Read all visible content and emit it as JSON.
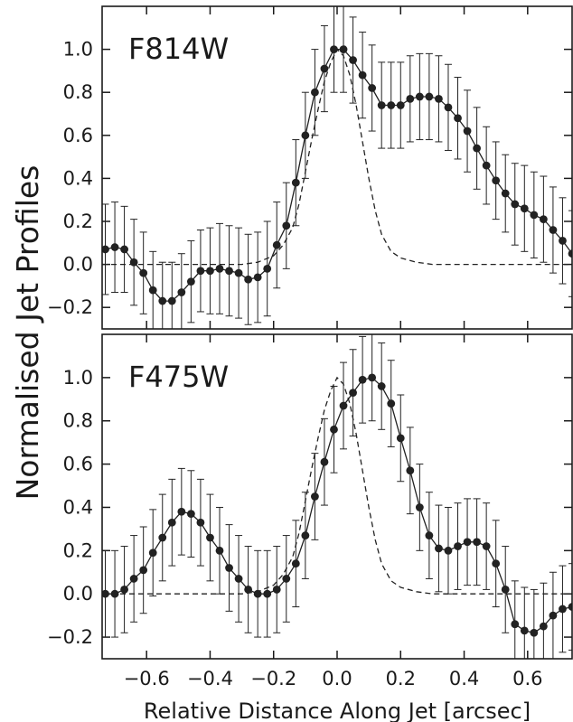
{
  "chart_data": {
    "type": "line",
    "ylabel": "Normalised Jet Profiles",
    "xlabel": "Relative Distance Along Jet [arcsec]",
    "xlim": [
      -0.74,
      0.74
    ],
    "ylim": [
      -0.3,
      1.2
    ],
    "xticks": [
      -0.6,
      -0.4,
      -0.2,
      0.0,
      0.2,
      0.4,
      0.6
    ],
    "xtick_labels": [
      "−0.6",
      "−0.4",
      "−0.2",
      "0.0",
      "0.2",
      "0.4",
      "0.6"
    ],
    "yticks": [
      -0.2,
      0.0,
      0.2,
      0.4,
      0.6,
      0.8,
      1.0
    ],
    "ytick_labels": [
      "−0.2",
      "0.0",
      "0.2",
      "0.4",
      "0.6",
      "0.8",
      "1.0"
    ],
    "grid": false,
    "panels": [
      {
        "label": "F814W",
        "x": [
          -0.73,
          -0.7,
          -0.67,
          -0.64,
          -0.61,
          -0.58,
          -0.55,
          -0.52,
          -0.49,
          -0.46,
          -0.43,
          -0.4,
          -0.37,
          -0.34,
          -0.31,
          -0.28,
          -0.25,
          -0.22,
          -0.19,
          -0.16,
          -0.13,
          -0.1,
          -0.07,
          -0.04,
          -0.01,
          0.02,
          0.05,
          0.08,
          0.11,
          0.14,
          0.17,
          0.2,
          0.23,
          0.26,
          0.29,
          0.32,
          0.35,
          0.38,
          0.41,
          0.44,
          0.47,
          0.5,
          0.53,
          0.56,
          0.59,
          0.62,
          0.65,
          0.68,
          0.71,
          0.74
        ],
        "values": [
          0.07,
          0.08,
          0.07,
          0.01,
          -0.04,
          -0.12,
          -0.17,
          -0.17,
          -0.13,
          -0.08,
          -0.03,
          -0.03,
          -0.02,
          -0.03,
          -0.04,
          -0.07,
          -0.06,
          -0.02,
          0.09,
          0.18,
          0.38,
          0.6,
          0.8,
          0.91,
          1.0,
          1.0,
          0.95,
          0.88,
          0.82,
          0.74,
          0.74,
          0.74,
          0.77,
          0.78,
          0.78,
          0.77,
          0.73,
          0.68,
          0.62,
          0.54,
          0.46,
          0.39,
          0.33,
          0.28,
          0.26,
          0.23,
          0.21,
          0.16,
          0.11,
          0.05
        ],
        "errors": [
          0.21,
          0.21,
          0.2,
          0.2,
          0.19,
          0.18,
          0.18,
          0.18,
          0.18,
          0.19,
          0.19,
          0.2,
          0.21,
          0.21,
          0.21,
          0.21,
          0.21,
          0.22,
          0.2,
          0.2,
          0.2,
          0.2,
          0.2,
          0.2,
          0.2,
          0.2,
          0.2,
          0.2,
          0.2,
          0.2,
          0.2,
          0.2,
          0.2,
          0.2,
          0.2,
          0.2,
          0.2,
          0.19,
          0.19,
          0.19,
          0.18,
          0.18,
          0.18,
          0.19,
          0.2,
          0.2,
          0.2,
          0.2,
          0.2,
          0.2
        ],
        "psf": [
          [
            -0.74,
            0.0
          ],
          [
            -0.5,
            0.0
          ],
          [
            -0.3,
            0.0
          ],
          [
            -0.25,
            0.01
          ],
          [
            -0.2,
            0.04
          ],
          [
            -0.17,
            0.09
          ],
          [
            -0.14,
            0.17
          ],
          [
            -0.12,
            0.28
          ],
          [
            -0.1,
            0.43
          ],
          [
            -0.08,
            0.58
          ],
          [
            -0.06,
            0.72
          ],
          [
            -0.04,
            0.85
          ],
          [
            -0.02,
            0.94
          ],
          [
            0.0,
            1.0
          ],
          [
            0.02,
            0.97
          ],
          [
            0.04,
            0.88
          ],
          [
            0.06,
            0.74
          ],
          [
            0.08,
            0.57
          ],
          [
            0.1,
            0.4
          ],
          [
            0.12,
            0.25
          ],
          [
            0.14,
            0.14
          ],
          [
            0.17,
            0.06
          ],
          [
            0.2,
            0.03
          ],
          [
            0.25,
            0.01
          ],
          [
            0.3,
            0.0
          ],
          [
            0.5,
            0.0
          ],
          [
            0.74,
            0.0
          ]
        ]
      },
      {
        "label": "F475W",
        "x": [
          -0.73,
          -0.7,
          -0.67,
          -0.64,
          -0.61,
          -0.58,
          -0.55,
          -0.52,
          -0.49,
          -0.46,
          -0.43,
          -0.4,
          -0.37,
          -0.34,
          -0.31,
          -0.28,
          -0.25,
          -0.22,
          -0.19,
          -0.16,
          -0.13,
          -0.1,
          -0.07,
          -0.04,
          -0.01,
          0.02,
          0.05,
          0.08,
          0.11,
          0.14,
          0.17,
          0.2,
          0.23,
          0.26,
          0.29,
          0.32,
          0.35,
          0.38,
          0.41,
          0.44,
          0.47,
          0.5,
          0.53,
          0.56,
          0.59,
          0.62,
          0.65,
          0.68,
          0.71,
          0.74
        ],
        "values": [
          0.0,
          0.0,
          0.02,
          0.07,
          0.11,
          0.19,
          0.26,
          0.33,
          0.38,
          0.37,
          0.33,
          0.26,
          0.2,
          0.12,
          0.07,
          0.02,
          0.0,
          0.0,
          0.02,
          0.07,
          0.14,
          0.27,
          0.45,
          0.61,
          0.76,
          0.87,
          0.93,
          0.99,
          1.0,
          0.96,
          0.88,
          0.72,
          0.57,
          0.4,
          0.27,
          0.21,
          0.2,
          0.22,
          0.24,
          0.24,
          0.22,
          0.14,
          0.02,
          -0.14,
          -0.17,
          -0.18,
          -0.15,
          -0.1,
          -0.07,
          -0.06
        ],
        "errors": [
          0.2,
          0.2,
          0.2,
          0.2,
          0.2,
          0.2,
          0.2,
          0.2,
          0.2,
          0.2,
          0.2,
          0.2,
          0.2,
          0.2,
          0.2,
          0.2,
          0.2,
          0.2,
          0.2,
          0.2,
          0.2,
          0.2,
          0.2,
          0.2,
          0.2,
          0.2,
          0.2,
          0.2,
          0.2,
          0.2,
          0.2,
          0.2,
          0.2,
          0.2,
          0.2,
          0.2,
          0.2,
          0.2,
          0.2,
          0.2,
          0.2,
          0.2,
          0.2,
          0.2,
          0.2,
          0.2,
          0.2,
          0.2,
          0.2,
          0.2
        ],
        "psf": [
          [
            -0.74,
            0.0
          ],
          [
            -0.5,
            0.0
          ],
          [
            -0.3,
            0.0
          ],
          [
            -0.25,
            0.01
          ],
          [
            -0.2,
            0.04
          ],
          [
            -0.17,
            0.09
          ],
          [
            -0.14,
            0.17
          ],
          [
            -0.12,
            0.28
          ],
          [
            -0.1,
            0.43
          ],
          [
            -0.08,
            0.58
          ],
          [
            -0.06,
            0.72
          ],
          [
            -0.04,
            0.85
          ],
          [
            -0.02,
            0.94
          ],
          [
            0.0,
            1.0
          ],
          [
            0.02,
            0.97
          ],
          [
            0.04,
            0.88
          ],
          [
            0.06,
            0.74
          ],
          [
            0.08,
            0.57
          ],
          [
            0.1,
            0.4
          ],
          [
            0.12,
            0.25
          ],
          [
            0.14,
            0.14
          ],
          [
            0.17,
            0.06
          ],
          [
            0.2,
            0.03
          ],
          [
            0.25,
            0.01
          ],
          [
            0.3,
            0.0
          ],
          [
            0.5,
            0.0
          ],
          [
            0.74,
            0.0
          ]
        ]
      }
    ],
    "colors": {
      "data": "#222222",
      "errorbar": "#222222",
      "psf": "#222222",
      "axis": "#1a1a1a"
    }
  }
}
